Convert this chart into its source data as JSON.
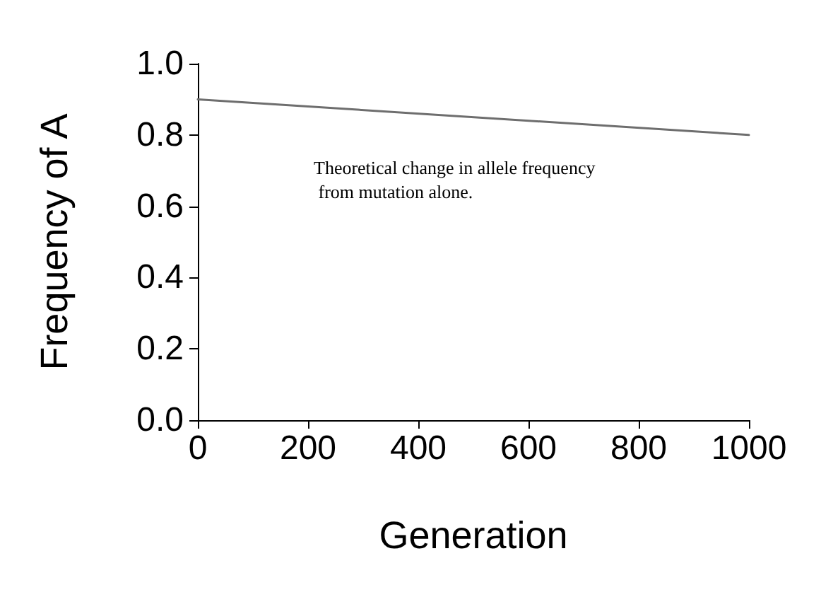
{
  "chart_data": {
    "type": "line",
    "xlabel": "Generation",
    "ylabel": "Frequency of A",
    "annotations": [
      "Theoretical change in allele frequency from mutation alone."
    ],
    "x": [
      0,
      1000
    ],
    "series": [
      {
        "color": "#6e6e6e",
        "values": [
          0.9,
          0.8
        ]
      }
    ],
    "xlim": [
      0,
      1000
    ],
    "xticks": [
      0,
      200,
      400,
      600,
      800,
      1000
    ],
    "ylim": [
      0,
      1
    ],
    "yticks": [
      {
        "value": 0,
        "label": "0.0"
      },
      {
        "value": 0.2,
        "label": "0.2"
      },
      {
        "value": 0.4,
        "label": "0.4"
      },
      {
        "value": 0.6,
        "label": "0.6"
      },
      {
        "value": 0.8,
        "label": "0.8"
      },
      {
        "value": 1,
        "label": "1.0"
      }
    ],
    "marker": "none",
    "line_style": "solid"
  }
}
